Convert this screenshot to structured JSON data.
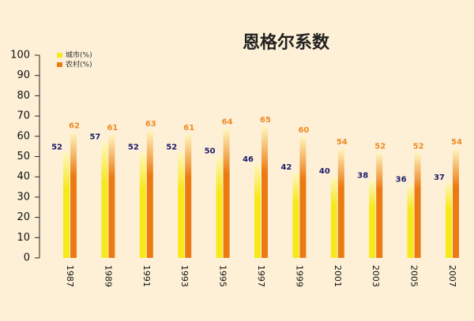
{
  "chart_data": {
    "type": "bar",
    "title": "恩格尔系数",
    "categories": [
      "1987",
      "1989",
      "1991",
      "1993",
      "1995",
      "1997",
      "1999",
      "2001",
      "2003",
      "2005",
      "2007"
    ],
    "series": [
      {
        "name": "城市(%)",
        "color": "#f7e81a",
        "label_color": "#1c1a6b",
        "values": [
          52,
          57,
          52,
          52,
          50,
          46,
          42,
          40,
          38,
          36,
          37
        ]
      },
      {
        "name": "农村(%)",
        "color": "#ec7a12",
        "label_color": "#ee8a26",
        "values": [
          62,
          61,
          63,
          61,
          64,
          65,
          60,
          54,
          52,
          52,
          54
        ]
      }
    ],
    "ylim": [
      0,
      100
    ],
    "yticks": [
      0,
      10,
      20,
      30,
      40,
      50,
      60,
      70,
      80,
      90,
      100
    ]
  }
}
